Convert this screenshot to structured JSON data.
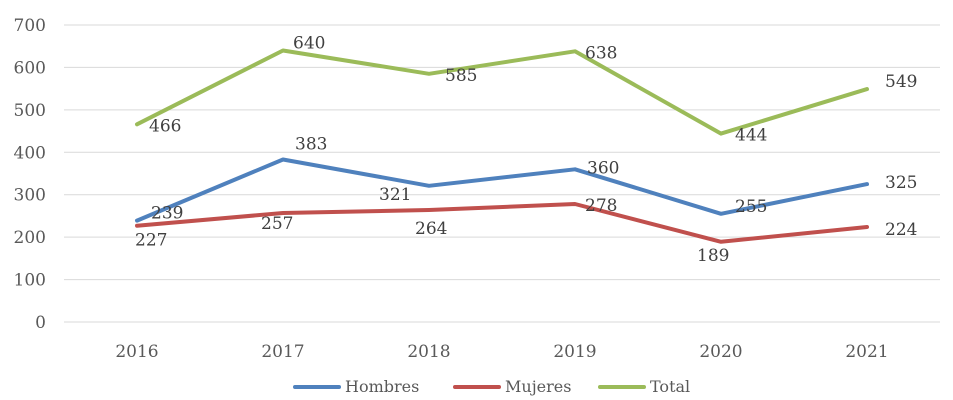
{
  "chart_data": {
    "type": "line",
    "title": "",
    "xlabel": "",
    "ylabel": "",
    "categories": [
      "2016",
      "2017",
      "2018",
      "2019",
      "2020",
      "2021"
    ],
    "ylim": [
      0,
      700
    ],
    "yticks": [
      0,
      100,
      200,
      300,
      400,
      500,
      600,
      700
    ],
    "grid": true,
    "legend_position": "bottom",
    "series": [
      {
        "name": "Hombres",
        "color": "#4f81bd",
        "values": [
          239,
          383,
          321,
          360,
          255,
          325
        ]
      },
      {
        "name": "Mujeres",
        "color": "#c0504d",
        "values": [
          227,
          257,
          264,
          278,
          189,
          224
        ]
      },
      {
        "name": "Total",
        "color": "#9bbb59",
        "values": [
          466,
          640,
          585,
          638,
          444,
          549
        ]
      }
    ]
  }
}
